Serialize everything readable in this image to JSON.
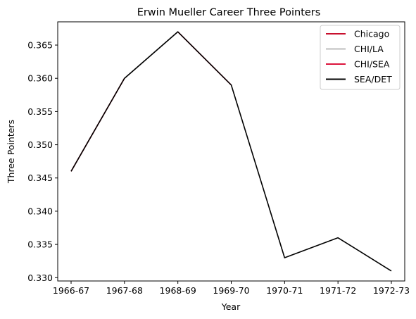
{
  "chart_data": {
    "type": "line",
    "title": "Erwin Mueller Career Three Pointers",
    "xlabel": "Year",
    "ylabel": "Three Pointers",
    "categories": [
      "1966-67",
      "1967-68",
      "1968-69",
      "1969-70",
      "1970-71",
      "1971-72",
      "1972-73"
    ],
    "ylim": [
      0.3295,
      0.3685
    ],
    "yticks": [
      "0.330",
      "0.335",
      "0.340",
      "0.345",
      "0.350",
      "0.355",
      "0.360",
      "0.365"
    ],
    "grid": false,
    "legend_position": "top-right",
    "series": [
      {
        "name": "Chicago",
        "color": "#c8102e",
        "values": [
          0.346,
          0.36,
          null,
          null,
          null,
          null,
          null
        ]
      },
      {
        "name": "CHI/LA",
        "color": "#bebebe",
        "values": [
          null,
          0.36,
          0.367,
          null,
          null,
          null,
          null
        ]
      },
      {
        "name": "CHI/SEA",
        "color": "#dc143c",
        "values": [
          null,
          null,
          0.367,
          0.359,
          null,
          null,
          null
        ]
      },
      {
        "name": "SEA/DET",
        "color": "#000000",
        "values": [
          0.346,
          0.36,
          0.367,
          0.359,
          0.333,
          0.336,
          0.331
        ]
      }
    ]
  }
}
